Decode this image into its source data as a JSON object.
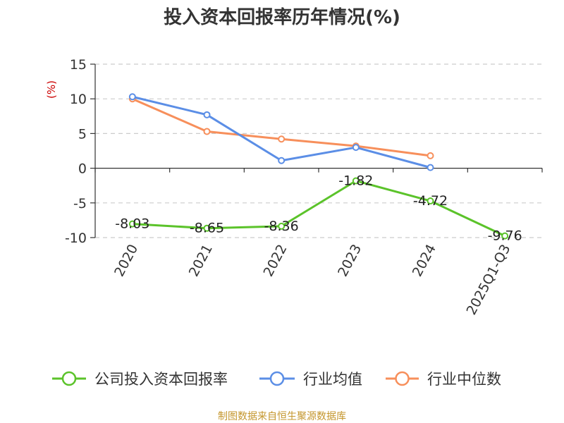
{
  "chart_data": {
    "type": "line",
    "title": "投入资本回报率历年情况(%)",
    "ylabel": "(%)",
    "xlabel": "",
    "categories": [
      "2020",
      "2021",
      "2022",
      "2023",
      "2024",
      "2025Q1-Q3"
    ],
    "ylim": [
      -10,
      15
    ],
    "yticks": [
      15,
      10,
      5,
      0,
      -5,
      -10
    ],
    "yticklabels": [
      "15",
      "10",
      "5",
      "0",
      "-5",
      "-10"
    ],
    "grid": true,
    "legend_position": "bottom",
    "series": [
      {
        "name": "公司投入资本回报率",
        "color": "#5bc32a",
        "values": [
          -8.03,
          -8.65,
          -8.36,
          -1.82,
          -4.72,
          -9.76
        ],
        "labels": [
          "-8.03",
          "-8.65",
          "-8.36",
          "-1.82",
          "-4.72",
          "-9.76"
        ]
      },
      {
        "name": "行业均值",
        "color": "#5b8ee6",
        "values": [
          10.3,
          7.7,
          1.1,
          3.0,
          0.1,
          null
        ]
      },
      {
        "name": "行业中位数",
        "color": "#f78f5b",
        "values": [
          10.0,
          5.3,
          4.2,
          3.2,
          1.8,
          null
        ]
      }
    ],
    "ylabel_color": "#cc0000",
    "source": "制图数据来自恒生聚源数据库",
    "source_color": "#c4962c"
  }
}
